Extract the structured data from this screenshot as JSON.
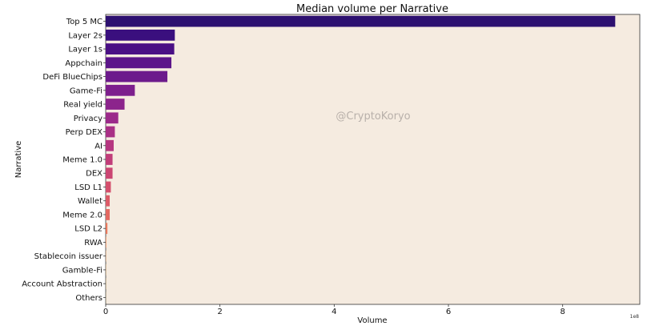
{
  "chart_data": {
    "type": "bar",
    "orientation": "horizontal",
    "title": "Median volume per Narrative",
    "xlabel": "Volume",
    "ylabel": "Narrative",
    "x_scale_note": "1e8",
    "xlim": [
      0,
      9.35
    ],
    "xticks": [
      0,
      2,
      4,
      6,
      8
    ],
    "grid": false,
    "legend": "none",
    "background_color": "#f5ebe0",
    "watermark": "@CryptoKoryo",
    "categories": [
      "Top 5 MC",
      "Layer 2s",
      "Layer 1s",
      "Appchain",
      "DeFi BlueChips",
      "Game-Fi",
      "Real yield",
      "Privacy",
      "Perp DEX",
      "AI",
      "Meme 1.0",
      "DEX",
      "LSD L1",
      "Wallet",
      "Meme 2.0",
      "LSD L2",
      "RWA",
      "Stablecoin issuer",
      "Gamble-Fi",
      "Account Abstraction",
      "Others"
    ],
    "values": [
      8.92,
      1.21,
      1.2,
      1.15,
      1.08,
      0.51,
      0.33,
      0.22,
      0.16,
      0.14,
      0.12,
      0.12,
      0.09,
      0.07,
      0.07,
      0.03,
      0.01,
      0.005,
      0.004,
      0.003,
      0.002
    ],
    "colors": [
      "#2d1070",
      "#3a0f7e",
      "#4a1085",
      "#5c158a",
      "#6c1a8c",
      "#7d1f8d",
      "#8c248c",
      "#9b2a8a",
      "#a93086",
      "#b53680",
      "#c13d7a",
      "#cb4573",
      "#d44f6d",
      "#dc5a67",
      "#e36861",
      "#e8785c",
      "#ec8a59",
      "#f09b58",
      "#f3ad5b",
      "#f5bf61",
      "#f7d06a"
    ]
  }
}
